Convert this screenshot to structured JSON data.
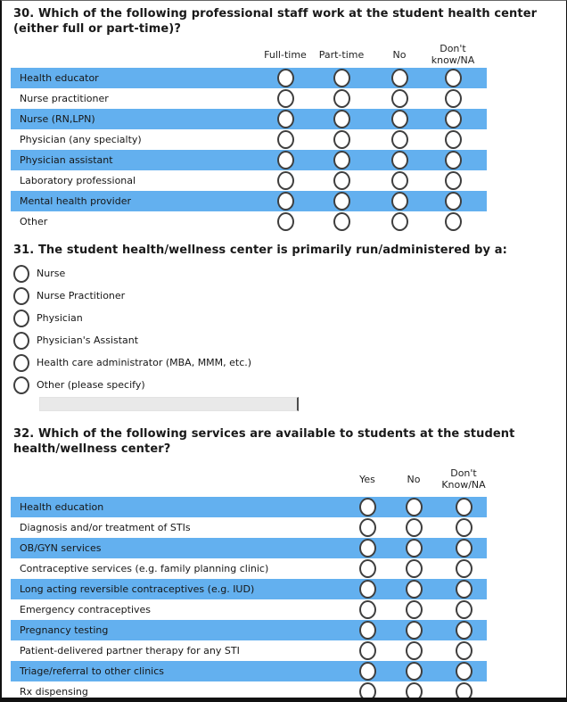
{
  "theme": {
    "row_highlight": "#63b0ef",
    "radio_border": "#3e3e3e",
    "title_color": "#191919",
    "input_bg": "#e9e9e9"
  },
  "q30": {
    "title": "30. Which of the following professional staff work at the student health center (either full or part-time)?",
    "columns": [
      "Full-time",
      "Part-time",
      "No",
      "Don't know/NA"
    ],
    "rows": [
      "Health educator",
      "Nurse practitioner",
      "Nurse (RN,LPN)",
      "Physician (any specialty)",
      "Physician assistant",
      "Laboratory professional",
      "Mental health provider",
      "Other"
    ]
  },
  "q31": {
    "title": "31. The student health/wellness center is primarily run/administered by a:",
    "options": [
      "Nurse",
      "Nurse Practitioner",
      "Physician",
      "Physician's Assistant",
      "Health care administrator (MBA, MMM, etc.)",
      "Other (please specify)"
    ],
    "other_value": ""
  },
  "q32": {
    "title": "32. Which of the following services are available to students at the student health/wellness center?",
    "columns": [
      "Yes",
      "No",
      "Don't Know/NA"
    ],
    "rows": [
      "Health education",
      "Diagnosis and/or treatment of STIs",
      "OB/GYN services",
      "Contraceptive services (e.g. family planning clinic)",
      "Long acting reversible contraceptives (e.g. IUD)",
      "Emergency contraceptives",
      "Pregnancy testing",
      "Patient-delivered partner therapy for any STI",
      "Triage/referral to other clinics",
      "Rx dispensing"
    ]
  }
}
